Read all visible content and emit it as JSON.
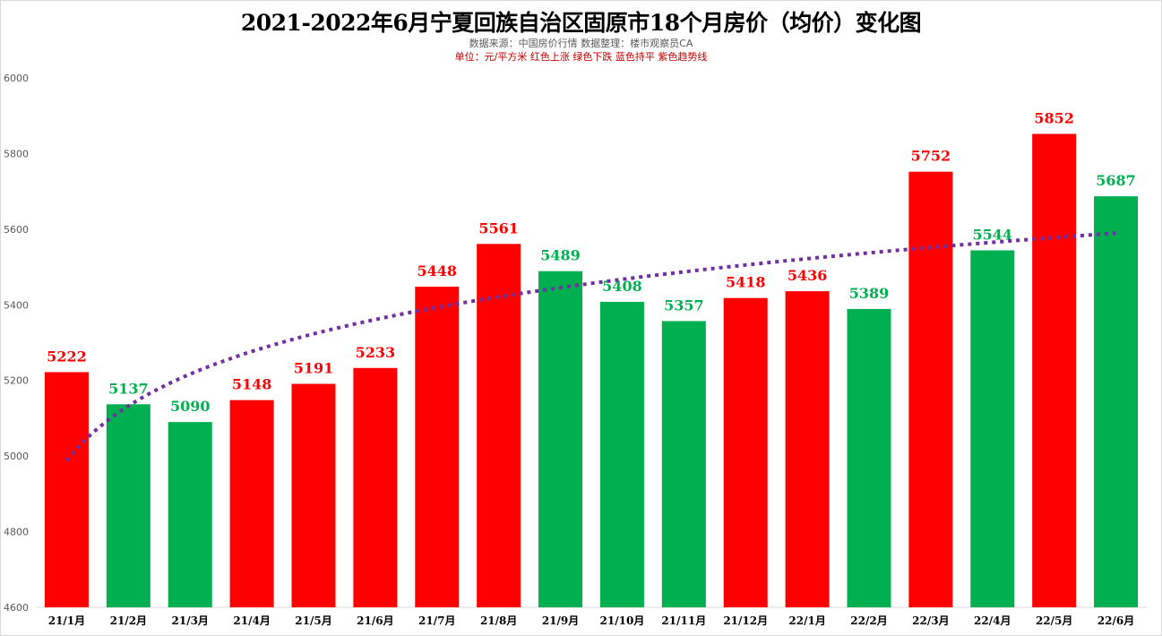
{
  "chart_data": {
    "type": "bar",
    "title": "2021-2022年6月宁夏回族自治区固原市18个月房价（均价）变化图",
    "subtitle": "数据来源：中国房价行情     数据整理：楼市观察员CA",
    "legend_note": "单位：元/平方米     红色上涨     绿色下跌     蓝色持平   紫色趋势线",
    "categories": [
      "21/1月",
      "21/2月",
      "21/3月",
      "21/4月",
      "21/5月",
      "21/6月",
      "21/7月",
      "21/8月",
      "21/9月",
      "21/10月",
      "21/11月",
      "21/12月",
      "22/1月",
      "22/2月",
      "22/3月",
      "22/4月",
      "22/5月",
      "22/6月"
    ],
    "values": [
      5222,
      5137,
      5090,
      5148,
      5191,
      5233,
      5448,
      5561,
      5489,
      5408,
      5357,
      5418,
      5436,
      5389,
      5752,
      5544,
      5852,
      5687
    ],
    "direction": [
      "up",
      "down",
      "down",
      "up",
      "up",
      "up",
      "up",
      "up",
      "down",
      "down",
      "down",
      "up",
      "up",
      "down",
      "up",
      "down",
      "up",
      "down"
    ],
    "colors": {
      "up": "#ff0000",
      "down": "#00b050",
      "flat": "#0070c0",
      "trend": "#7030a0"
    },
    "ylim": [
      4600,
      6000
    ],
    "yticks": [
      4600,
      4800,
      5000,
      5200,
      5400,
      5600,
      5800,
      6000
    ],
    "grid": false,
    "data_labels": true,
    "trendline": {
      "type": "logarithmic",
      "style": "dotted"
    }
  }
}
